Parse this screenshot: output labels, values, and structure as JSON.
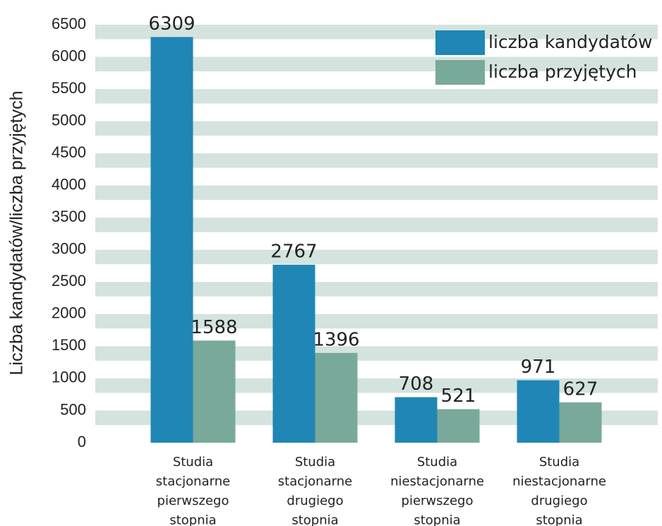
{
  "chart_data": {
    "type": "bar",
    "y_label": "Liczba kandydatów/liczba przyjętych",
    "categories": [
      [
        "Studia",
        "stacjonarne",
        "pierwszego",
        "stopnia"
      ],
      [
        "Studia",
        "stacjonarne",
        "drugiego",
        "stopnia"
      ],
      [
        "Studia",
        "niestacjonarne",
        "pierwszego",
        "stopnia"
      ],
      [
        "Studia",
        "niestacjonarne",
        "drugiego",
        "stopnia"
      ]
    ],
    "series": [
      {
        "name": "liczba kandydatów",
        "color": "#1f86b5",
        "values": [
          6309,
          2767,
          708,
          971
        ]
      },
      {
        "name": "liczba przyjętych",
        "color": "#79a99a",
        "values": [
          1588,
          1396,
          521,
          627
        ]
      }
    ],
    "ylim": [
      0,
      6500
    ],
    "yticks": [
      0,
      500,
      1000,
      1500,
      2000,
      2500,
      3000,
      3500,
      4000,
      4500,
      5000,
      5500,
      6000,
      6500
    ],
    "grid": true,
    "grid_color": "#d3e3de",
    "legend": "upper right"
  }
}
